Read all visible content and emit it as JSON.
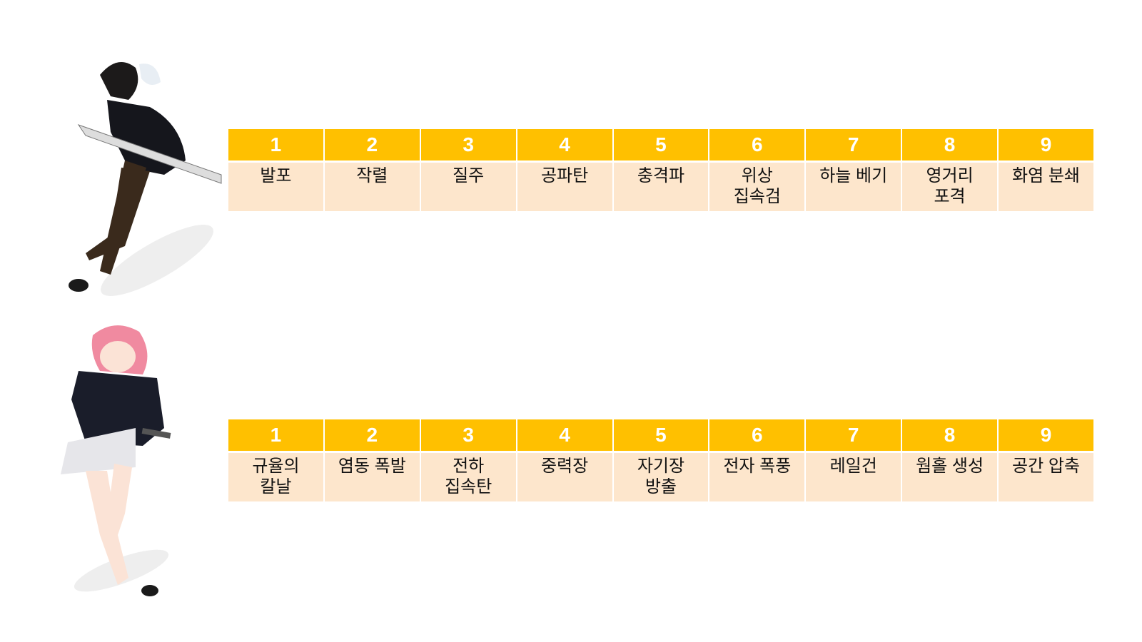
{
  "colors": {
    "header": "#ffc000",
    "cell": "#fde6cc",
    "header_text": "#ffffff"
  },
  "tables": [
    {
      "character": "male-swordsman-illustration",
      "headers": [
        "1",
        "2",
        "3",
        "4",
        "5",
        "6",
        "7",
        "8",
        "9"
      ],
      "skills": [
        "발포",
        "작렬",
        "질주",
        "공파탄",
        "충격파",
        "위상\n집속검",
        "하늘 베기",
        "영거리\n포격",
        "화염 분쇄"
      ]
    },
    {
      "character": "female-gunner-illustration",
      "headers": [
        "1",
        "2",
        "3",
        "4",
        "5",
        "6",
        "7",
        "8",
        "9"
      ],
      "skills": [
        "규율의\n칼날",
        "염동 폭발",
        "전하\n집속탄",
        "중력장",
        "자기장\n방출",
        "전자 폭풍",
        "레일건",
        "웜홀 생성",
        "공간 압축"
      ]
    }
  ]
}
